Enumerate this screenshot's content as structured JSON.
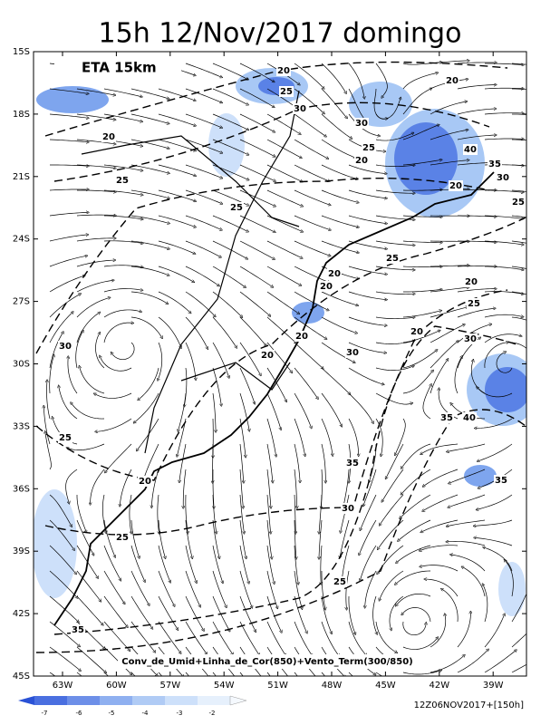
{
  "title": "15h 12/Nov/2017 domingo",
  "model": "ETA 15km",
  "latitudes": [
    "15S",
    "18S",
    "21S",
    "24S",
    "27S",
    "30S",
    "33S",
    "36S",
    "39S",
    "42S",
    "45S"
  ],
  "longitudes": [
    "63W",
    "60W",
    "57W",
    "54W",
    "51W",
    "48W",
    "45W",
    "42W",
    "39W"
  ],
  "contour_labels": [
    "20",
    "25",
    "30",
    "20",
    "20",
    "30",
    "25",
    "20",
    "25",
    "35",
    "40",
    "30",
    "20",
    "25",
    "25",
    "25",
    "20",
    "20",
    "20",
    "25",
    "20",
    "20",
    "30",
    "20",
    "30",
    "30",
    "35",
    "40",
    "25",
    "35",
    "35",
    "20",
    "30",
    "25",
    "25",
    "35"
  ],
  "caption": "Conv_de_Umid+Linha_de_Cor(850)+Vento_Term(300/850)",
  "colorbar": {
    "labels": [
      "-7",
      "-6",
      "-5",
      "-4",
      "-3",
      "-2"
    ]
  },
  "run": "12Z06NOV2017+[150h]"
}
